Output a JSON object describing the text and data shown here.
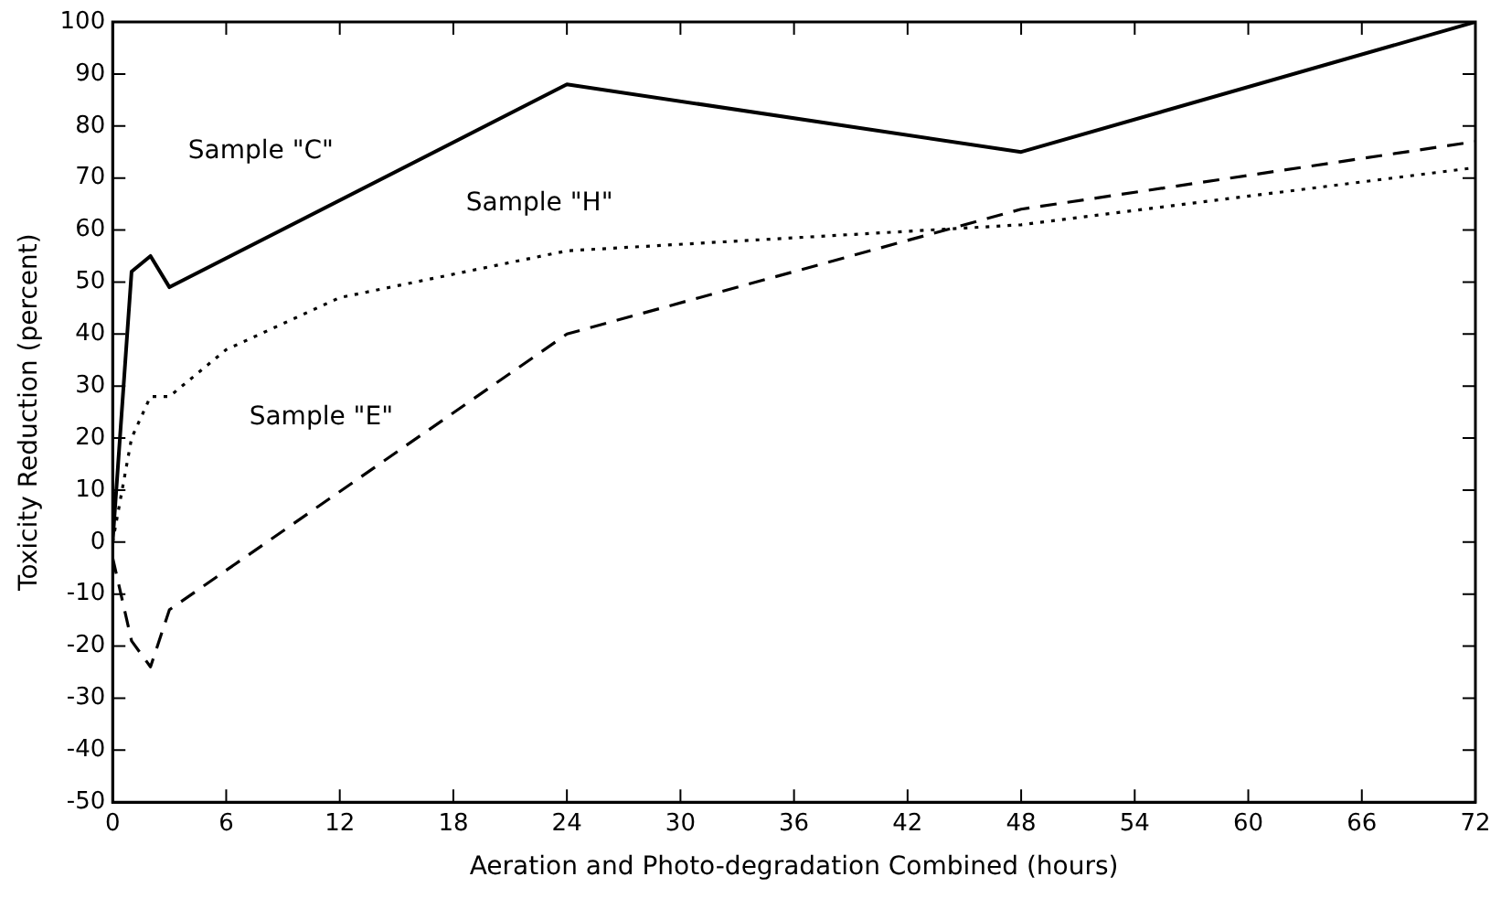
{
  "chart_data": {
    "type": "line",
    "xlabel": "Aeration and Photo-degradation Combined (hours)",
    "ylabel": "Toxicity Reduction (percent)",
    "xlim": [
      0,
      72
    ],
    "xticks": [
      0,
      6,
      12,
      18,
      24,
      30,
      36,
      42,
      48,
      54,
      60,
      66,
      72
    ],
    "ylim": [
      -50,
      100
    ],
    "yticks": [
      -50,
      -40,
      -30,
      -20,
      -10,
      0,
      10,
      20,
      30,
      40,
      50,
      60,
      70,
      80,
      90,
      100
    ],
    "grid": false,
    "legend": false,
    "marker": "none",
    "series": [
      {
        "name": "Sample \"C\"",
        "color": "#000000",
        "line_style": "solid",
        "x": [
          0,
          1,
          2,
          3,
          24,
          48,
          72
        ],
        "values": [
          0,
          52,
          55,
          49,
          88,
          75,
          100
        ]
      },
      {
        "name": "Sample \"H\"",
        "color": "#000000",
        "line_style": "dotted",
        "x": [
          0,
          1,
          2,
          3,
          6,
          12,
          24,
          48,
          72
        ],
        "values": [
          0,
          20,
          28,
          28,
          37,
          47,
          56,
          61,
          72
        ]
      },
      {
        "name": "Sample \"E\"",
        "color": "#000000",
        "line_style": "dashed",
        "x": [
          0,
          1,
          2,
          3,
          24,
          48,
          72
        ],
        "values": [
          -3,
          -19,
          -24,
          -13,
          40,
          64,
          77
        ]
      }
    ]
  }
}
